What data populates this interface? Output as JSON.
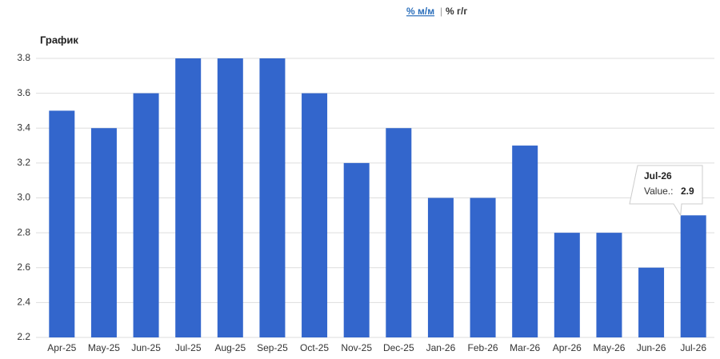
{
  "controls": {
    "options": [
      "% м/м",
      "% г/г"
    ],
    "separator": "|"
  },
  "chart_data": {
    "type": "bar",
    "title": "График",
    "categories": [
      "Apr-25",
      "May-25",
      "Jun-25",
      "Jul-25",
      "Aug-25",
      "Sep-25",
      "Oct-25",
      "Nov-25",
      "Dec-25",
      "Jan-26",
      "Feb-26",
      "Mar-26",
      "Apr-26",
      "May-26",
      "Jun-26",
      "Jul-26"
    ],
    "values": [
      3.5,
      3.4,
      3.6,
      3.8,
      3.8,
      3.8,
      3.6,
      3.2,
      3.4,
      3.0,
      3.0,
      3.3,
      2.8,
      2.8,
      2.6,
      2.9
    ],
    "color": "#3366cc",
    "ylim": [
      2.2,
      3.8
    ],
    "yticks": [
      {
        "value": 2.2,
        "label": "2.2"
      },
      {
        "value": 2.4,
        "label": "2.4"
      },
      {
        "value": 2.6,
        "label": "2.6"
      },
      {
        "value": 2.8,
        "label": "2.8"
      },
      {
        "value": 3.0,
        "label": "3.0"
      },
      {
        "value": 3.2,
        "label": "3.2"
      },
      {
        "value": 3.4,
        "label": "3.4"
      },
      {
        "value": 3.6,
        "label": "3.6"
      },
      {
        "value": 3.8,
        "label": "3.8"
      }
    ],
    "grid": true,
    "tooltip": {
      "title": "Jul-26",
      "label": "Value.:",
      "value": 2.9
    }
  }
}
